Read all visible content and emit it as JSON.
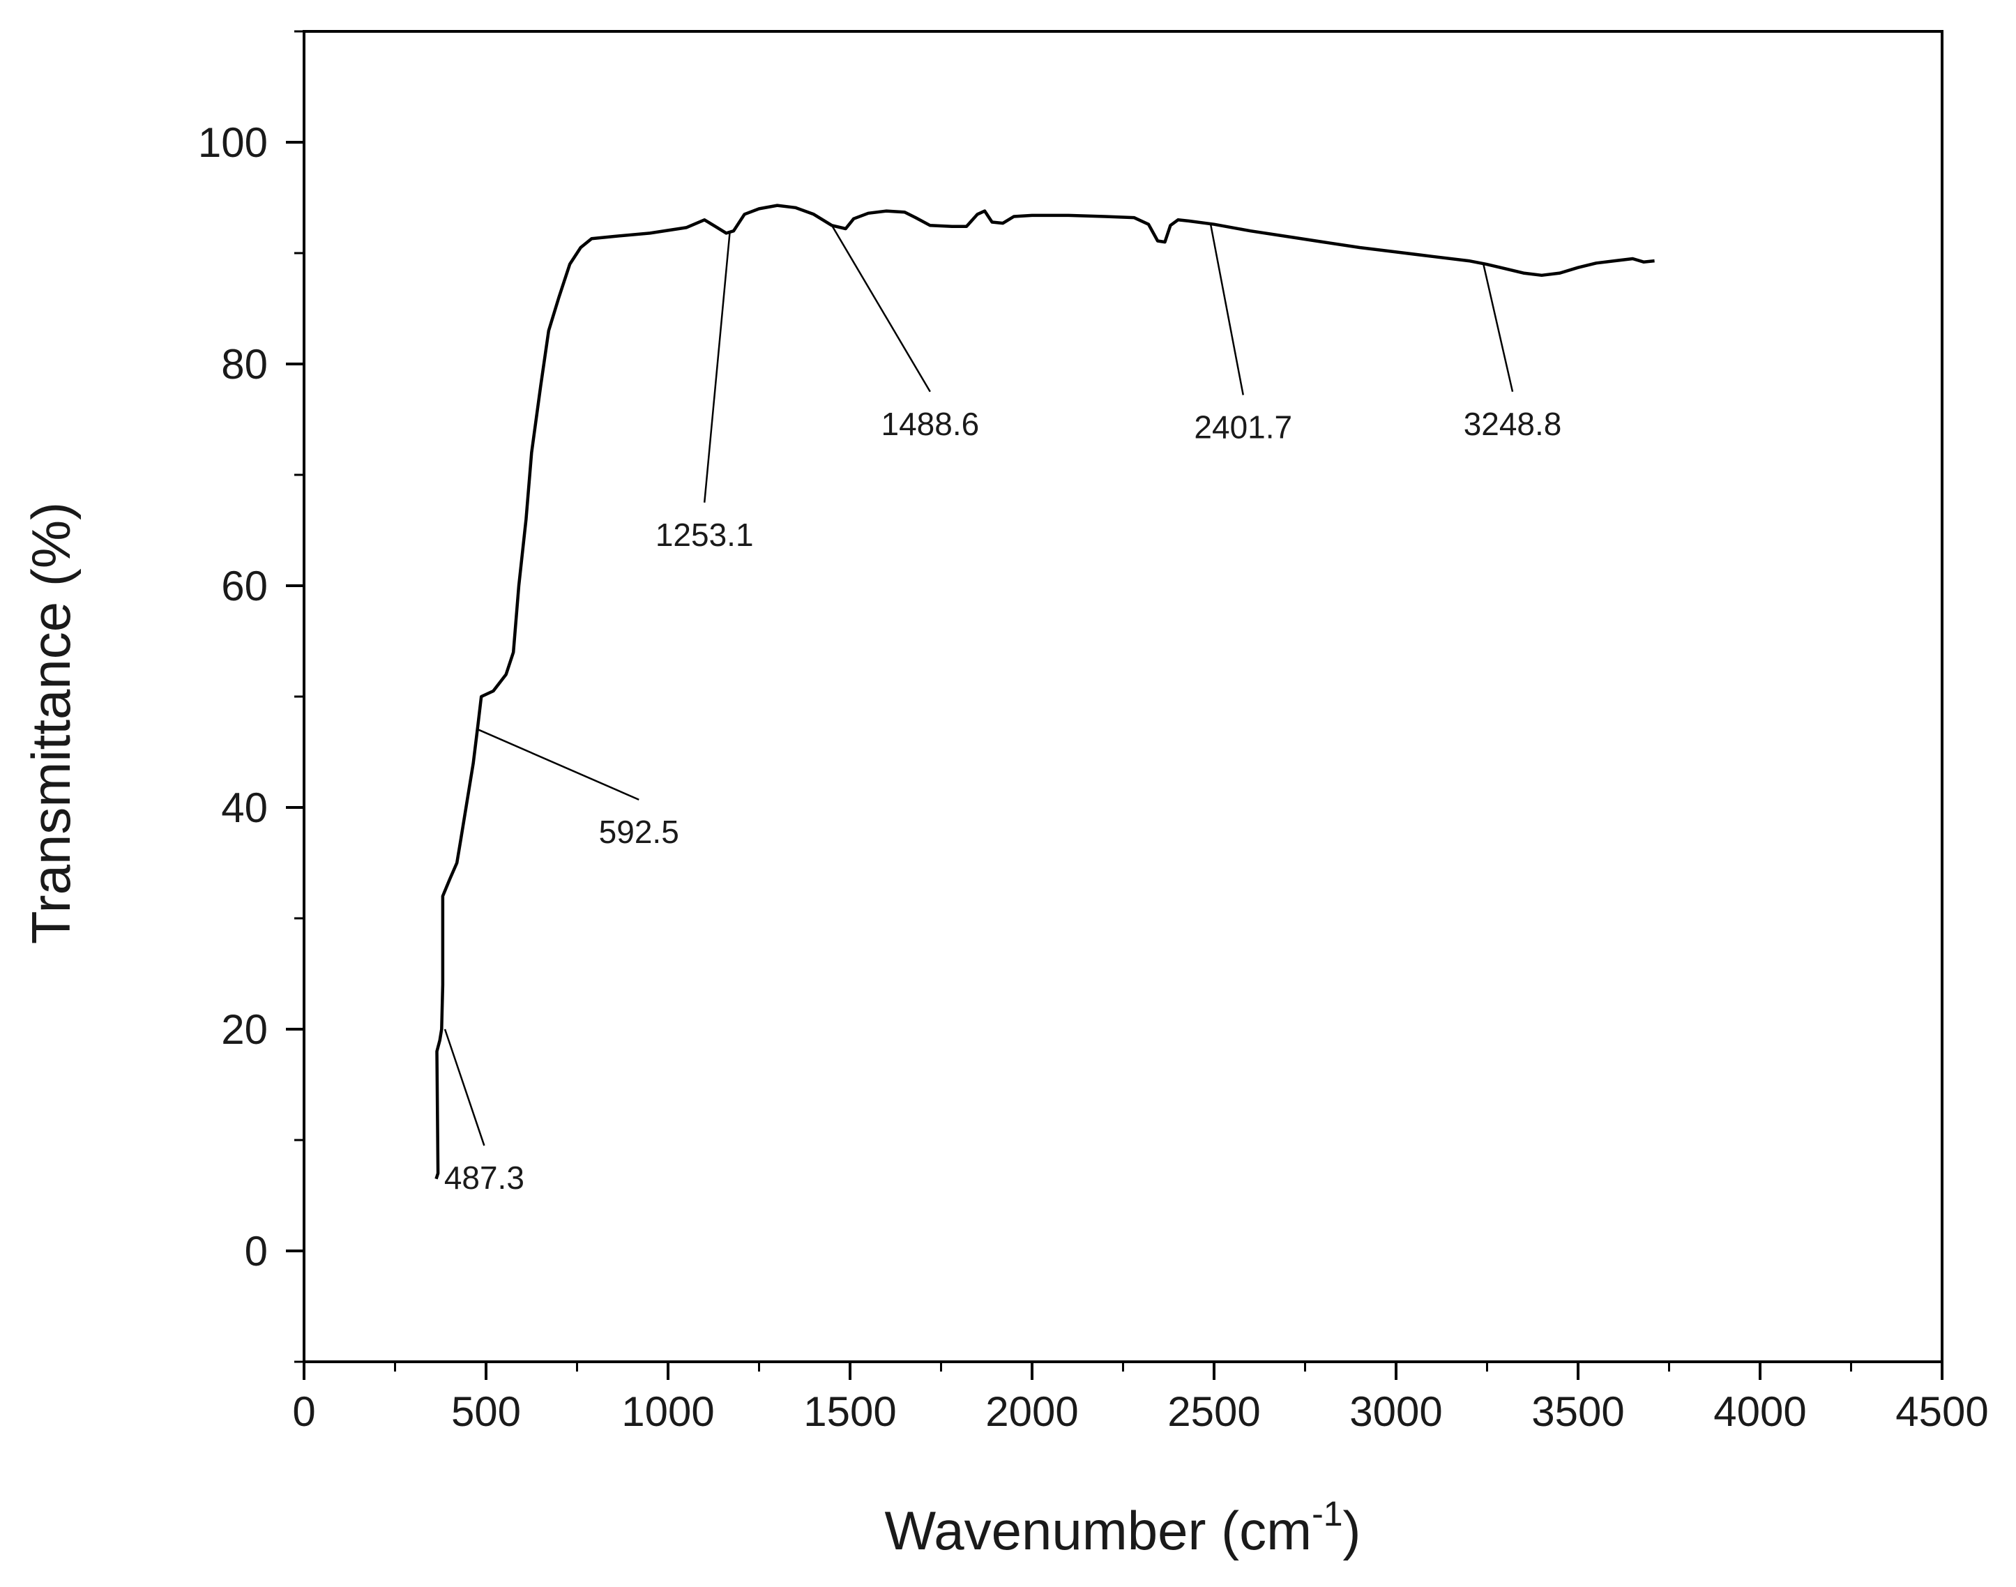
{
  "chart_data": {
    "type": "line",
    "title": "",
    "xlabel": "Wavenumber (cm",
    "xlabel_sup": "-1",
    "xlabel_end": ")",
    "ylabel": "Transmittance (%)",
    "xlim": [
      0,
      4500
    ],
    "ylim": [
      -10,
      110
    ],
    "x_ticks": [
      0,
      500,
      1000,
      1500,
      2000,
      2500,
      3000,
      3500,
      4000,
      4500
    ],
    "x_tick_labels": [
      "0",
      "500",
      "1000",
      "1500",
      "2000",
      "2500",
      "3000",
      "3500",
      "4000",
      "4500"
    ],
    "y_ticks": [
      0,
      20,
      40,
      60,
      80,
      100
    ],
    "y_tick_labels": [
      "0",
      "20",
      "40",
      "60",
      "80",
      "100"
    ],
    "grid": false,
    "line_color": "#000000",
    "series": [
      {
        "points": [
          [
            363,
            6.5
          ],
          [
            368,
            7
          ],
          [
            365,
            18
          ],
          [
            373,
            19
          ],
          [
            378,
            20
          ],
          [
            381,
            24
          ],
          [
            381,
            32
          ],
          [
            400,
            33.5
          ],
          [
            420,
            35
          ],
          [
            430,
            37
          ],
          [
            445,
            40
          ],
          [
            465,
            44
          ],
          [
            478,
            47.5
          ],
          [
            487,
            50
          ],
          [
            520,
            50.5
          ],
          [
            555,
            52
          ],
          [
            575,
            54
          ],
          [
            590,
            60
          ],
          [
            610,
            66
          ],
          [
            625,
            72
          ],
          [
            650,
            78
          ],
          [
            672,
            83
          ],
          [
            700,
            86
          ],
          [
            730,
            89
          ],
          [
            760,
            90.5
          ],
          [
            790,
            91.3
          ],
          [
            850,
            91.5
          ],
          [
            950,
            91.8
          ],
          [
            1050,
            92.3
          ],
          [
            1100,
            93
          ],
          [
            1130,
            92.4
          ],
          [
            1160,
            91.8
          ],
          [
            1180,
            92
          ],
          [
            1210,
            93.5
          ],
          [
            1250,
            94
          ],
          [
            1300,
            94.3
          ],
          [
            1350,
            94.1
          ],
          [
            1400,
            93.5
          ],
          [
            1450,
            92.5
          ],
          [
            1488,
            92.2
          ],
          [
            1510,
            93.1
          ],
          [
            1550,
            93.6
          ],
          [
            1600,
            93.8
          ],
          [
            1650,
            93.7
          ],
          [
            1680,
            93.2
          ],
          [
            1720,
            92.5
          ],
          [
            1780,
            92.4
          ],
          [
            1820,
            92.4
          ],
          [
            1850,
            93.5
          ],
          [
            1870,
            93.8
          ],
          [
            1890,
            92.8
          ],
          [
            1920,
            92.7
          ],
          [
            1950,
            93.3
          ],
          [
            2000,
            93.4
          ],
          [
            2100,
            93.4
          ],
          [
            2200,
            93.3
          ],
          [
            2280,
            93.2
          ],
          [
            2320,
            92.6
          ],
          [
            2345,
            91.1
          ],
          [
            2365,
            91
          ],
          [
            2380,
            92.5
          ],
          [
            2401,
            93
          ],
          [
            2430,
            92.9
          ],
          [
            2500,
            92.6
          ],
          [
            2600,
            92
          ],
          [
            2700,
            91.5
          ],
          [
            2800,
            91
          ],
          [
            2900,
            90.5
          ],
          [
            3000,
            90.1
          ],
          [
            3100,
            89.7
          ],
          [
            3200,
            89.3
          ],
          [
            3248,
            89
          ],
          [
            3300,
            88.6
          ],
          [
            3350,
            88.2
          ],
          [
            3400,
            88
          ],
          [
            3450,
            88.2
          ],
          [
            3500,
            88.7
          ],
          [
            3550,
            89.1
          ],
          [
            3600,
            89.3
          ],
          [
            3650,
            89.5
          ],
          [
            3680,
            89.2
          ],
          [
            3710,
            89.3
          ]
        ]
      }
    ],
    "annotations": [
      {
        "label": "487.3",
        "x": 387,
        "y": 20,
        "tx": 495,
        "ty": 9.5
      },
      {
        "label": "592.5",
        "x": 480,
        "y": 47,
        "tx": 920,
        "ty": 40.7
      },
      {
        "label": "1253.1",
        "x": 1170,
        "y": 92,
        "tx": 1100,
        "ty": 67.5
      },
      {
        "label": "1488.6",
        "x": 1450,
        "y": 92.5,
        "tx": 1720,
        "ty": 77.5
      },
      {
        "label": "2401.7",
        "x": 2490,
        "y": 92.7,
        "tx": 2580,
        "ty": 77.2
      },
      {
        "label": "3248.8",
        "x": 3240,
        "y": 89,
        "tx": 3320,
        "ty": 77.5
      }
    ]
  }
}
